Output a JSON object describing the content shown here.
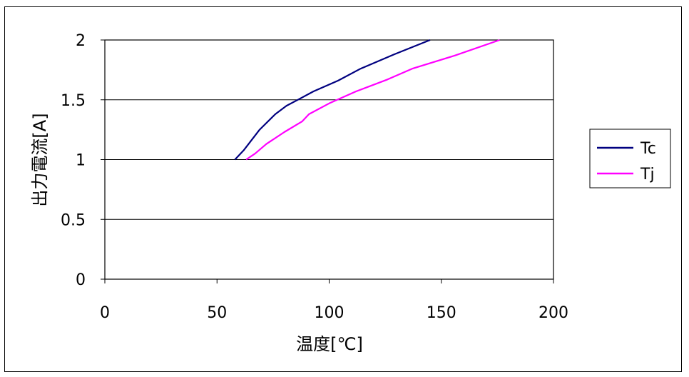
{
  "chart_data": {
    "type": "line",
    "xlabel": "温度[℃]",
    "ylabel": "出力電流[A]",
    "xlim": [
      0,
      200
    ],
    "ylim": [
      0,
      2
    ],
    "x_ticks": [
      "0",
      "50",
      "100",
      "150",
      "200"
    ],
    "y_ticks": [
      "0",
      "0.5",
      "1",
      "1.5",
      "2"
    ],
    "grid": "horizontal",
    "legend_position": "right",
    "series": [
      {
        "name": "Tc",
        "color": "#000080",
        "points": [
          [
            58,
            1.0
          ],
          [
            62,
            1.08
          ],
          [
            69,
            1.25
          ],
          [
            76,
            1.38
          ],
          [
            81,
            1.45
          ],
          [
            86,
            1.5
          ],
          [
            93,
            1.57
          ],
          [
            104,
            1.66
          ],
          [
            114,
            1.76
          ],
          [
            129,
            1.88
          ],
          [
            145,
            2.0
          ]
        ]
      },
      {
        "name": "Tj",
        "color": "#ff00ff",
        "points": [
          [
            63,
            1.0
          ],
          [
            67,
            1.05
          ],
          [
            72,
            1.13
          ],
          [
            80,
            1.23
          ],
          [
            88,
            1.32
          ],
          [
            91,
            1.38
          ],
          [
            100,
            1.47
          ],
          [
            112,
            1.57
          ],
          [
            126,
            1.67
          ],
          [
            137,
            1.76
          ],
          [
            156,
            1.87
          ],
          [
            176,
            2.0
          ]
        ]
      }
    ]
  }
}
